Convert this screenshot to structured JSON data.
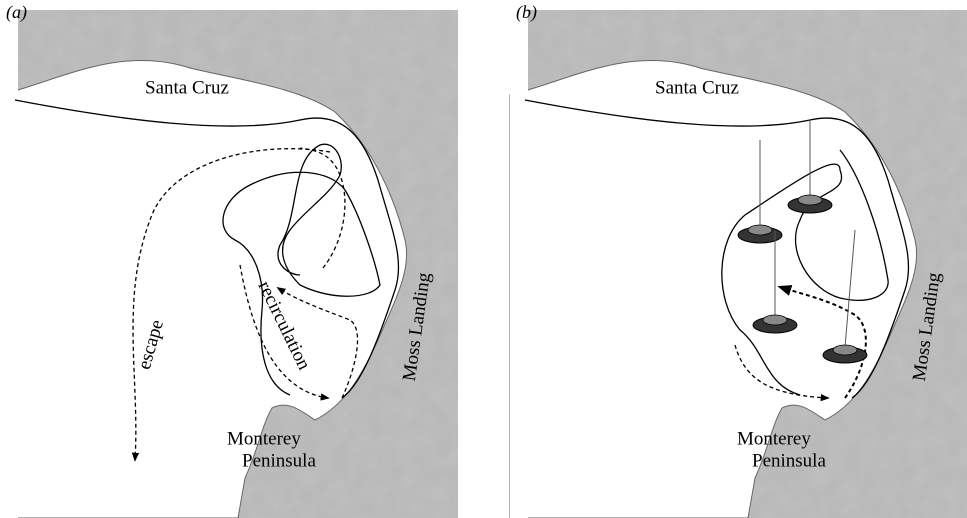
{
  "panels": [
    {
      "label": "(a)",
      "places": {
        "santa_cruz": "Santa Cruz",
        "moss_landing": "Moss Landing",
        "monterey": "Monterey",
        "peninsula": "Peninsula"
      },
      "flows": {
        "escape": "escape",
        "recirculation": "recirculation"
      }
    },
    {
      "label": "(b)",
      "places": {
        "santa_cruz": "Santa Cruz",
        "moss_landing": "Moss Landing",
        "monterey": "Monterey",
        "peninsula": "Peninsula"
      }
    }
  ]
}
